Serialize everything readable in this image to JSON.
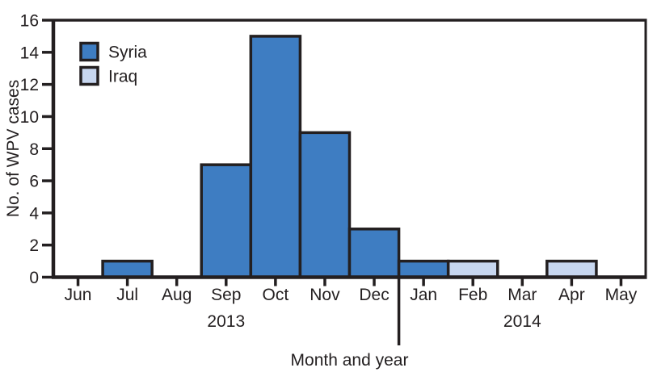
{
  "chart_data": {
    "type": "bar",
    "title": "",
    "xlabel": "Month and year",
    "ylabel": "No. of WPV cases",
    "ylim": [
      0,
      16
    ],
    "yticks": [
      0,
      2,
      4,
      6,
      8,
      10,
      12,
      14,
      16
    ],
    "grid": false,
    "categories": [
      "Jun",
      "Jul",
      "Aug",
      "Sep",
      "Oct",
      "Nov",
      "Dec",
      "Jan",
      "Feb",
      "Mar",
      "Apr",
      "May"
    ],
    "series": [
      {
        "name": "Syria",
        "color": "#3E7DC2",
        "values": [
          0,
          1,
          0,
          7,
          15,
          9,
          3,
          1,
          0,
          0,
          0,
          0
        ]
      },
      {
        "name": "Iraq",
        "color": "#C7D6EF",
        "values": [
          0,
          0,
          0,
          0,
          0,
          0,
          0,
          0,
          1,
          0,
          1,
          0
        ]
      }
    ],
    "year_labels": [
      {
        "text": "2013",
        "from_month": "Jun",
        "to_month": "Dec"
      },
      {
        "text": "2014",
        "from_month": "Jan",
        "to_month": "May"
      }
    ],
    "divider_after_category": "Dec",
    "legend": {
      "position": "top-left",
      "entries": [
        "Syria",
        "Iraq"
      ]
    },
    "axis_color": "#231F20"
  }
}
